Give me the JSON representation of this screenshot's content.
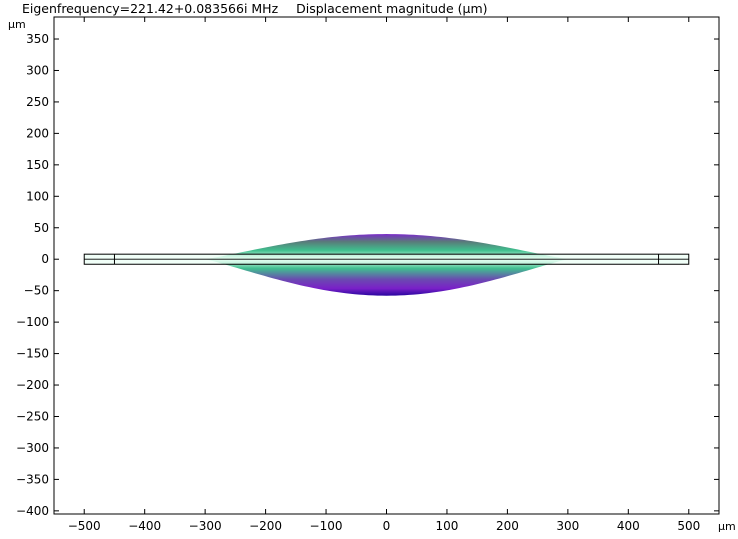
{
  "header": {
    "eigenfrequency": "Eigenfrequency=221.42+0.083566i MHz",
    "expression": "Displacement magnitude (μm)"
  },
  "chart_data": {
    "type": "area",
    "title": "Eigenfrequency=221.42+0.083566i MHz    Displacement magnitude (μm)",
    "xlabel": "μm",
    "ylabel": "μm",
    "xlim": [
      -550,
      550
    ],
    "ylim": [
      -405,
      385
    ],
    "x_ticks": [
      -500,
      -400,
      -300,
      -200,
      -100,
      0,
      100,
      200,
      300,
      400,
      500
    ],
    "y_ticks": [
      350,
      300,
      250,
      200,
      150,
      100,
      50,
      0,
      -50,
      -100,
      -150,
      -200,
      -250,
      -300,
      -350,
      -400
    ],
    "grid": false,
    "geometry": {
      "beam_x_range": [
        -500,
        500
      ],
      "beam_y_range": [
        -8,
        8
      ],
      "support_lines_x": [
        -450,
        450
      ],
      "centerline_y": 0
    },
    "deformed_shape": {
      "x_range": [
        -300,
        300
      ],
      "top_peak_y": 40,
      "bottom_peak_y": -58
    },
    "colormap": {
      "low": "#e6fff2",
      "mid": "#3ec08e",
      "high": "#6a1ec0",
      "max": "#2a06a0"
    }
  }
}
